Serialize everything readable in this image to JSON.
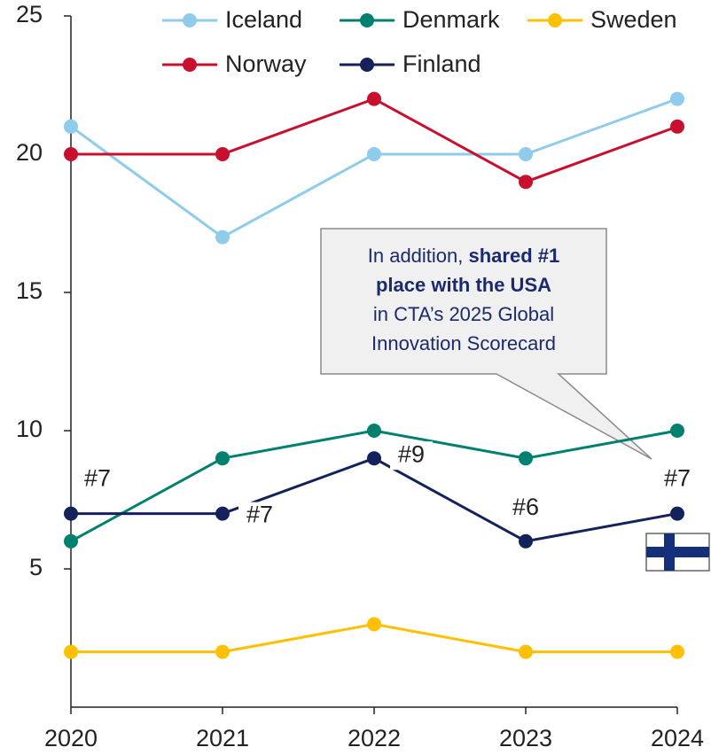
{
  "chart_data": {
    "type": "line",
    "categories": [
      "2020",
      "2021",
      "2022",
      "2023",
      "2024"
    ],
    "series": [
      {
        "name": "Iceland",
        "color": "#8fcbea",
        "values": [
          21,
          17,
          20,
          20,
          22
        ]
      },
      {
        "name": "Denmark",
        "color": "#00806f",
        "values": [
          6,
          9,
          10,
          9,
          10
        ]
      },
      {
        "name": "Sweden",
        "color": "#ffc000",
        "values": [
          2,
          2,
          3,
          2,
          2
        ]
      },
      {
        "name": "Norway",
        "color": "#c8102e",
        "values": [
          20,
          20,
          22,
          19,
          21
        ]
      },
      {
        "name": "Finland",
        "color": "#14215a",
        "values": [
          7,
          7,
          9,
          6,
          7
        ],
        "rank_labels": [
          "#7",
          "#7",
          "#9",
          "#6",
          "#7"
        ]
      }
    ],
    "ylim": [
      0,
      25
    ],
    "yticks": [
      5,
      10,
      15,
      20,
      25
    ],
    "callout_lines": [
      [
        {
          "text": "In addition, "
        },
        {
          "text": "shared #1",
          "bold": true
        }
      ],
      [
        {
          "text": "place with the USA",
          "bold": true
        }
      ],
      [
        {
          "text": "in CTA’s 2025 Global"
        }
      ],
      [
        {
          "text": "Innovation Scorecard"
        }
      ]
    ]
  }
}
